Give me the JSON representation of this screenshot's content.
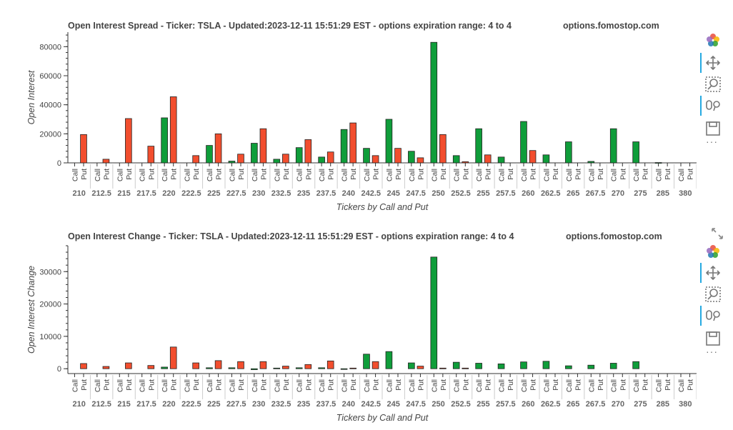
{
  "chart_data": [
    {
      "type": "bar",
      "title": "Open Interest Spread - Ticker: TSLA - Updated:2023-12-11 15:51:29 EST - options expiration range: 4 to 4",
      "watermark": "options.fomostop.com",
      "xlabel": "Tickers by Call and Put",
      "ylabel": "Open Interest",
      "ylim": [
        0,
        90000
      ],
      "yticks": [
        0,
        20000,
        40000,
        60000,
        80000
      ],
      "grid": false,
      "categories": [
        "210",
        "212.5",
        "215",
        "217.5",
        "220",
        "222.5",
        "225",
        "227.5",
        "230",
        "232.5",
        "235",
        "237.5",
        "240",
        "242.5",
        "245",
        "247.5",
        "250",
        "252.5",
        "255",
        "257.5",
        "260",
        "262.5",
        "265",
        "267.5",
        "270",
        "275",
        "285",
        "380"
      ],
      "subcategories": [
        "Call",
        "Put"
      ],
      "series": [
        {
          "name": "Call",
          "color": "#0f9d3a",
          "values": [
            0,
            0,
            0,
            0,
            31000,
            0,
            12000,
            1200,
            13500,
            2500,
            10500,
            4000,
            23000,
            10000,
            30000,
            8000,
            83000,
            5000,
            23500,
            4000,
            28500,
            5500,
            14500,
            1000,
            23500,
            14500,
            200,
            0
          ]
        },
        {
          "name": "Put",
          "color": "#f24e2e",
          "values": [
            19500,
            2500,
            30500,
            11500,
            45500,
            5000,
            20000,
            6000,
            23500,
            6000,
            16000,
            7500,
            27500,
            5000,
            10000,
            3500,
            19500,
            800,
            5500,
            0,
            8500,
            0,
            0,
            0,
            0,
            0,
            0,
            0
          ]
        }
      ]
    },
    {
      "type": "bar",
      "title": "Open Interest Change - Ticker: TSLA - Updated:2023-12-11 15:51:29 EST - options expiration range: 4 to 4",
      "watermark": "options.fomostop.com",
      "xlabel": "Tickers by Call and Put",
      "ylabel": "Open Interest Change",
      "ylim": [
        -1500,
        38000
      ],
      "yticks": [
        0,
        10000,
        20000,
        30000
      ],
      "grid": false,
      "categories": [
        "210",
        "212.5",
        "215",
        "217.5",
        "220",
        "222.5",
        "225",
        "227.5",
        "230",
        "232.5",
        "235",
        "237.5",
        "240",
        "242.5",
        "245",
        "247.5",
        "250",
        "252.5",
        "255",
        "257.5",
        "260",
        "262.5",
        "265",
        "267.5",
        "270",
        "275",
        "285",
        "380"
      ],
      "subcategories": [
        "Call",
        "Put"
      ],
      "series": [
        {
          "name": "Call",
          "color": "#0f9d3a",
          "values": [
            0,
            0,
            0,
            0,
            500,
            0,
            300,
            300,
            -300,
            200,
            300,
            300,
            -200,
            4500,
            5300,
            1800,
            34500,
            2000,
            1700,
            1500,
            2100,
            2300,
            900,
            1100,
            1700,
            2200,
            0,
            0
          ]
        },
        {
          "name": "Put",
          "color": "#f24e2e",
          "values": [
            1600,
            700,
            1800,
            1000,
            6700,
            1800,
            2500,
            2200,
            2200,
            800,
            1300,
            2400,
            200,
            2200,
            0,
            800,
            200,
            200,
            0,
            0,
            0,
            0,
            0,
            0,
            0,
            0,
            0,
            0
          ]
        }
      ]
    }
  ],
  "toolbar": {
    "icons": [
      "bokeh-logo-icon",
      "pan-icon",
      "box-zoom-icon",
      "wheel-zoom-icon",
      "save-icon",
      "more-icon"
    ],
    "more_label": "···"
  }
}
